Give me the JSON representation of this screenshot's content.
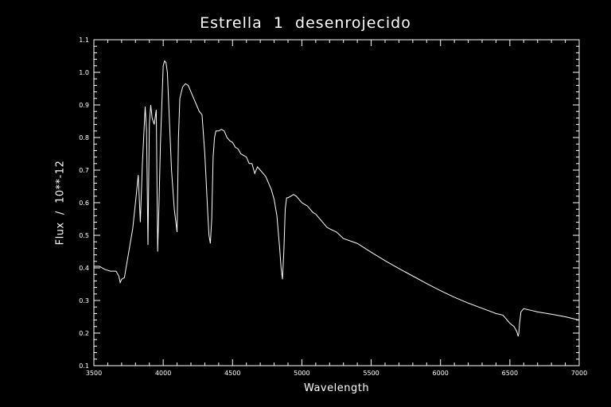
{
  "chart_data": {
    "type": "line",
    "title": "Estrella  1  desenrojecido",
    "xlabel": "Wavelength",
    "ylabel": "Flux  /  10**-12",
    "xlim": [
      3500,
      7000
    ],
    "ylim": [
      0.1,
      1.1
    ],
    "xticks": [
      "3500",
      "4000",
      "4500",
      "5000",
      "5500",
      "6000",
      "6500",
      "7000"
    ],
    "yticks": [
      "0.1",
      "0.2",
      "0.3",
      "0.4",
      "0.5",
      "0.6",
      "0.7",
      "0.8",
      "0.9",
      "1.0",
      "1.1"
    ],
    "grid": false,
    "legend": "none",
    "colors": {
      "background": "#000000",
      "line": "#ffffff",
      "axes": "#ffffff"
    },
    "x": [
      3500,
      3540,
      3580,
      3620,
      3660,
      3680,
      3690,
      3700,
      3720,
      3740,
      3760,
      3780,
      3800,
      3820,
      3835,
      3850,
      3870,
      3880,
      3890,
      3900,
      3910,
      3920,
      3935,
      3950,
      3960,
      3970,
      3980,
      4000,
      4010,
      4020,
      4030,
      4040,
      4050,
      4060,
      4080,
      4100,
      4110,
      4120,
      4140,
      4160,
      4180,
      4200,
      4220,
      4240,
      4260,
      4280,
      4300,
      4320,
      4330,
      4340,
      4350,
      4360,
      4370,
      4380,
      4400,
      4420,
      4440,
      4460,
      4480,
      4500,
      4520,
      4540,
      4560,
      4580,
      4600,
      4620,
      4640,
      4660,
      4680,
      4700,
      4720,
      4740,
      4760,
      4780,
      4800,
      4820,
      4840,
      4850,
      4860,
      4870,
      4880,
      4890,
      4900,
      4920,
      4940,
      4960,
      4980,
      5000,
      5020,
      5040,
      5060,
      5080,
      5100,
      5120,
      5140,
      5160,
      5180,
      5200,
      5250,
      5300,
      5400,
      5500,
      5600,
      5700,
      5800,
      5900,
      6000,
      6100,
      6200,
      6300,
      6400,
      6450,
      6500,
      6530,
      6550,
      6560,
      6565,
      6570,
      6580,
      6600,
      6650,
      6700,
      6800,
      6900,
      7000
    ],
    "values": [
      0.405,
      0.405,
      0.395,
      0.39,
      0.39,
      0.375,
      0.355,
      0.365,
      0.37,
      0.42,
      0.47,
      0.52,
      0.6,
      0.685,
      0.54,
      0.72,
      0.895,
      0.82,
      0.47,
      0.84,
      0.9,
      0.86,
      0.84,
      0.885,
      0.45,
      0.6,
      0.78,
      1.02,
      1.035,
      1.03,
      1.0,
      0.9,
      0.8,
      0.7,
      0.58,
      0.51,
      0.8,
      0.92,
      0.955,
      0.965,
      0.96,
      0.94,
      0.92,
      0.9,
      0.88,
      0.87,
      0.75,
      0.58,
      0.5,
      0.475,
      0.55,
      0.74,
      0.8,
      0.82,
      0.82,
      0.825,
      0.82,
      0.8,
      0.79,
      0.785,
      0.77,
      0.765,
      0.75,
      0.745,
      0.74,
      0.72,
      0.72,
      0.69,
      0.71,
      0.7,
      0.69,
      0.68,
      0.66,
      0.64,
      0.61,
      0.56,
      0.46,
      0.4,
      0.365,
      0.45,
      0.58,
      0.615,
      0.615,
      0.62,
      0.625,
      0.62,
      0.61,
      0.6,
      0.595,
      0.59,
      0.58,
      0.57,
      0.565,
      0.555,
      0.545,
      0.535,
      0.525,
      0.52,
      0.51,
      0.49,
      0.475,
      0.448,
      0.422,
      0.398,
      0.375,
      0.352,
      0.33,
      0.31,
      0.292,
      0.276,
      0.26,
      0.255,
      0.23,
      0.22,
      0.205,
      0.19,
      0.2,
      0.23,
      0.265,
      0.275,
      0.27,
      0.265,
      0.258,
      0.25,
      0.24
    ]
  }
}
